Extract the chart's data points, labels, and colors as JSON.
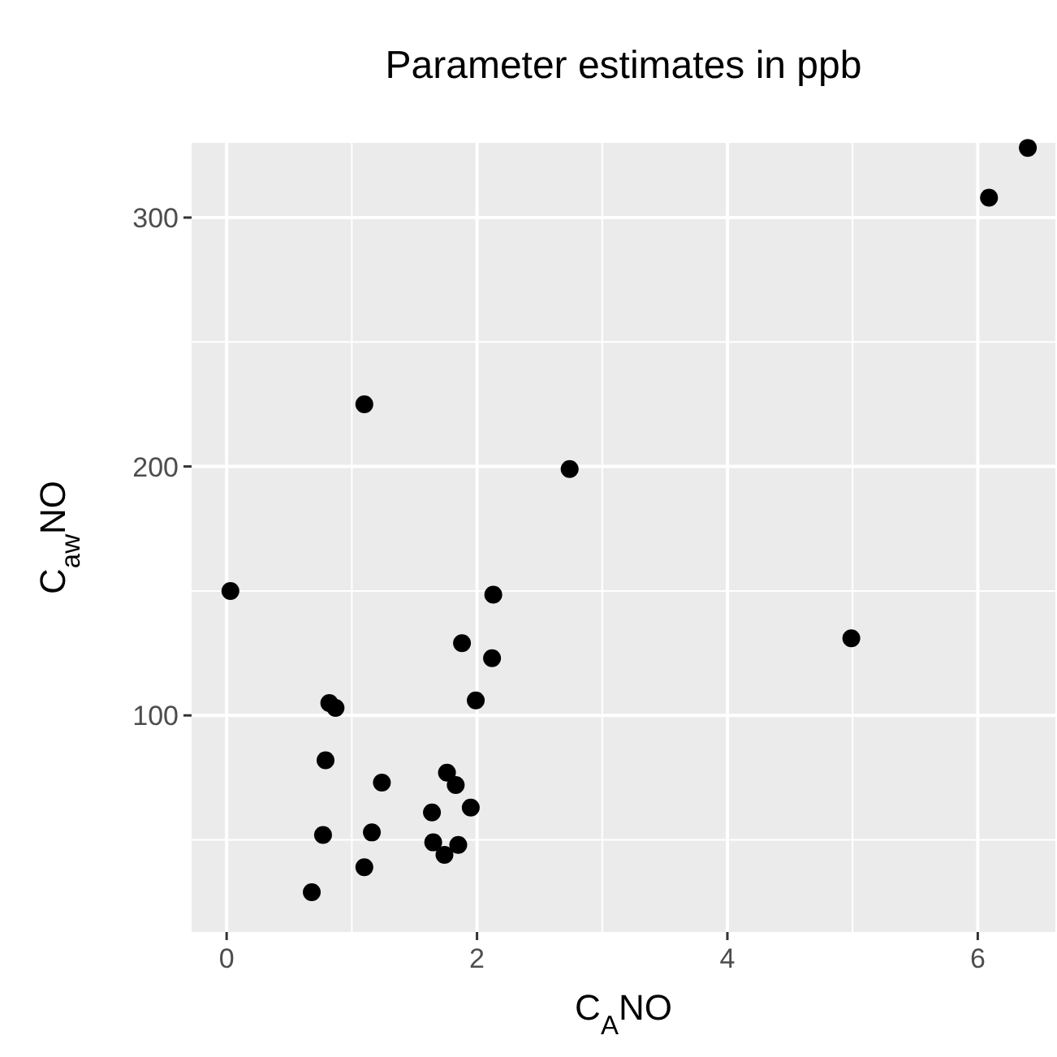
{
  "chart_data": {
    "type": "scatter",
    "title": "Parameter estimates in ppb",
    "xlabel": "C$_{A}$NO",
    "ylabel": "C$_{aw}$NO",
    "xlim": [
      -0.28,
      6.62
    ],
    "ylim": [
      13,
      330
    ],
    "xticks": [
      0,
      2,
      4,
      6
    ],
    "yticks": [
      100,
      200,
      300
    ],
    "grid": true,
    "marker": "circle",
    "series": [
      {
        "color": "#000000",
        "x": [
          6.4,
          6.09,
          1.1,
          2.74,
          0.03,
          2.13,
          4.99,
          1.88,
          2.12,
          1.99,
          0.82,
          0.87,
          0.79,
          1.24,
          1.76,
          1.83,
          1.95,
          1.64,
          0.77,
          1.16,
          1.65,
          1.85,
          1.74,
          1.1,
          0.68
        ],
        "values": [
          328,
          308,
          225,
          199,
          150,
          148.5,
          131,
          129,
          123,
          106,
          105,
          103,
          82,
          73,
          77,
          72,
          63,
          61,
          52,
          53,
          49,
          48,
          44,
          39,
          29
        ]
      }
    ]
  }
}
